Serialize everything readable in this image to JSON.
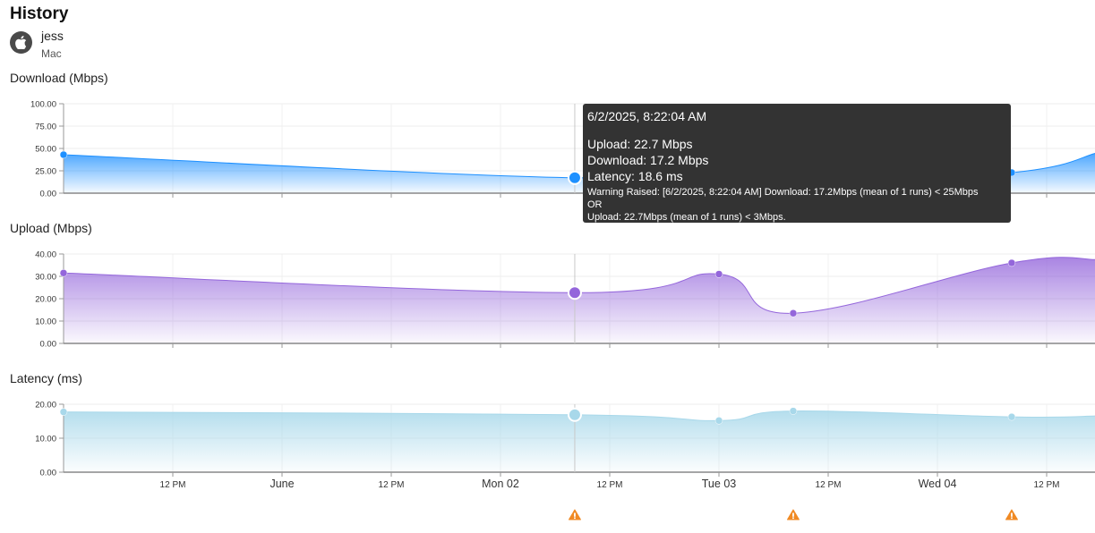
{
  "header": {
    "title": "History",
    "user_name": "jess",
    "device_os": "Mac",
    "avatar_icon": "apple-icon"
  },
  "colors": {
    "download": "#1e90ff",
    "upload": "#9466db",
    "latency": "#a8d8ea",
    "warning": "#f08a24",
    "tooltip_bg": "#333333"
  },
  "x_axis": {
    "ticks": [
      {
        "t": 0.5,
        "label": "12 PM",
        "major": false
      },
      {
        "t": 1.0,
        "label": "June",
        "major": true
      },
      {
        "t": 1.5,
        "label": "12 PM",
        "major": false
      },
      {
        "t": 2.0,
        "label": "Mon 02",
        "major": true
      },
      {
        "t": 2.5,
        "label": "12 PM",
        "major": false
      },
      {
        "t": 3.0,
        "label": "Tue 03",
        "major": true
      },
      {
        "t": 3.5,
        "label": "12 PM",
        "major": false
      },
      {
        "t": 4.0,
        "label": "Wed 04",
        "major": true
      },
      {
        "t": 4.5,
        "label": "12 PM",
        "major": false
      }
    ],
    "t_min": 0.0,
    "t_max": 4.73
  },
  "chart_data": [
    {
      "type": "area",
      "title": "Download (Mbps)",
      "ylim": [
        0,
        100
      ],
      "y_ticks": [
        "0.00",
        "25.00",
        "50.00",
        "75.00",
        "100.00"
      ],
      "series": [
        {
          "x": [
            0.0,
            2.34,
            3.0,
            3.34,
            4.34,
            4.73
          ],
          "values": [
            43,
            17.2,
            31,
            13,
            23,
            45
          ]
        }
      ],
      "highlight_index": 1
    },
    {
      "type": "area",
      "title": "Upload (Mbps)",
      "ylim": [
        0,
        40
      ],
      "y_ticks": [
        "0.00",
        "10.00",
        "20.00",
        "30.00",
        "40.00"
      ],
      "series": [
        {
          "x": [
            0.0,
            2.34,
            3.0,
            3.34,
            4.34,
            4.73
          ],
          "values": [
            31.5,
            22.7,
            31,
            13.5,
            36,
            37.5
          ]
        }
      ],
      "highlight_index": 1
    },
    {
      "type": "area",
      "title": "Latency (ms)",
      "ylim": [
        0,
        22
      ],
      "y_ticks": [
        "0.00",
        "10.00",
        "20.00"
      ],
      "series": [
        {
          "x": [
            0.0,
            2.34,
            3.0,
            3.34,
            4.34,
            4.73
          ],
          "values": [
            19.5,
            18.6,
            16.7,
            19.8,
            17.9,
            18.2
          ]
        }
      ],
      "highlight_index": 1
    }
  ],
  "warnings": [
    {
      "t": 2.34
    },
    {
      "t": 3.34
    },
    {
      "t": 4.34
    }
  ],
  "tooltip": {
    "date": "6/2/2025, 8:22:04 AM",
    "upload": "Upload: 22.7 Mbps",
    "download": "Download: 17.2 Mbps",
    "latency": "Latency: 18.6 ms",
    "warning_line1": "Warning Raised: [6/2/2025, 8:22:04 AM] Download: 17.2Mbps (mean of 1 runs) < 25Mbps",
    "warning_line2": "OR",
    "warning_line3": "Upload: 22.7Mbps (mean of 1 runs) < 3Mbps."
  }
}
